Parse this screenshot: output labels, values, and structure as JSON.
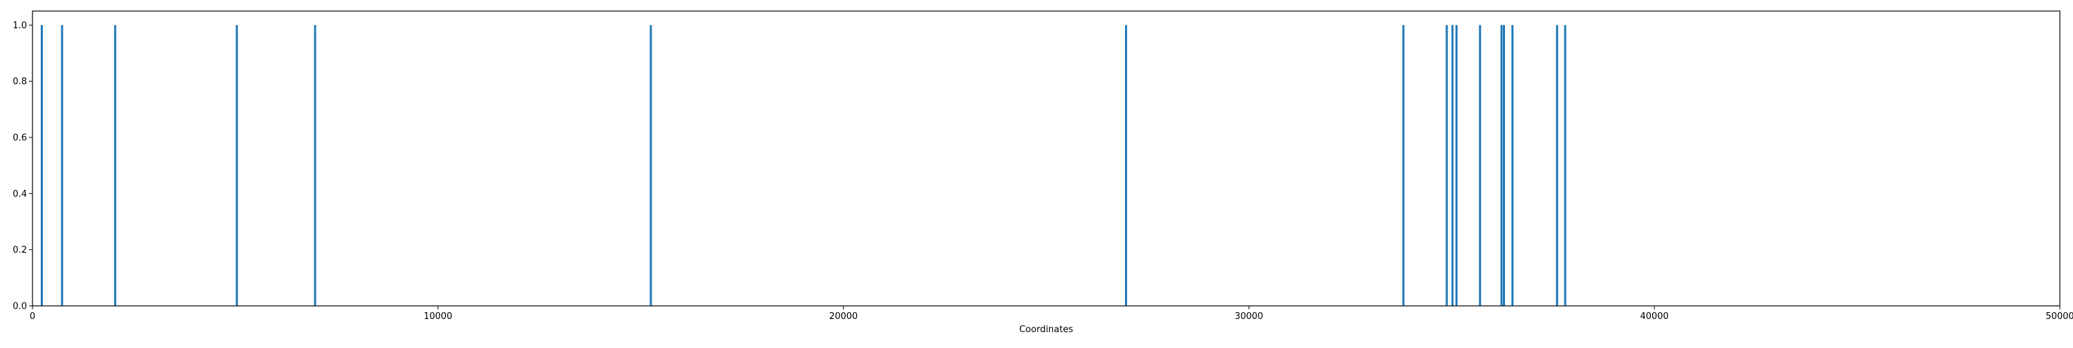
{
  "chart_data": {
    "type": "bar",
    "title": "",
    "xlabel": "Coordinates",
    "ylabel": "",
    "xlim": [
      0,
      50000
    ],
    "ylim": [
      0,
      1.05
    ],
    "x_ticks": [
      0,
      10000,
      20000,
      30000,
      40000,
      50000
    ],
    "y_ticks": [
      0.0,
      0.2,
      0.4,
      0.6,
      0.8,
      1.0
    ],
    "x_tick_labels": [
      "0",
      "10000",
      "20000",
      "30000",
      "40000",
      "50000"
    ],
    "y_tick_labels": [
      "0.0",
      "0.2",
      "0.4",
      "0.6",
      "0.8",
      "1.0"
    ],
    "grid": false,
    "legend": "none",
    "colors": {
      "bar": "#1f77b4",
      "axis": "#000000"
    },
    "x": [
      230,
      730,
      2040,
      5040,
      6970,
      15250,
      26970,
      33810,
      34880,
      35020,
      35120,
      35700,
      36230,
      36290,
      36500,
      37600,
      37800
    ],
    "values": [
      1,
      1,
      1,
      1,
      1,
      1,
      1,
      1,
      1,
      1,
      1,
      1,
      1,
      1,
      1,
      1,
      1
    ]
  }
}
